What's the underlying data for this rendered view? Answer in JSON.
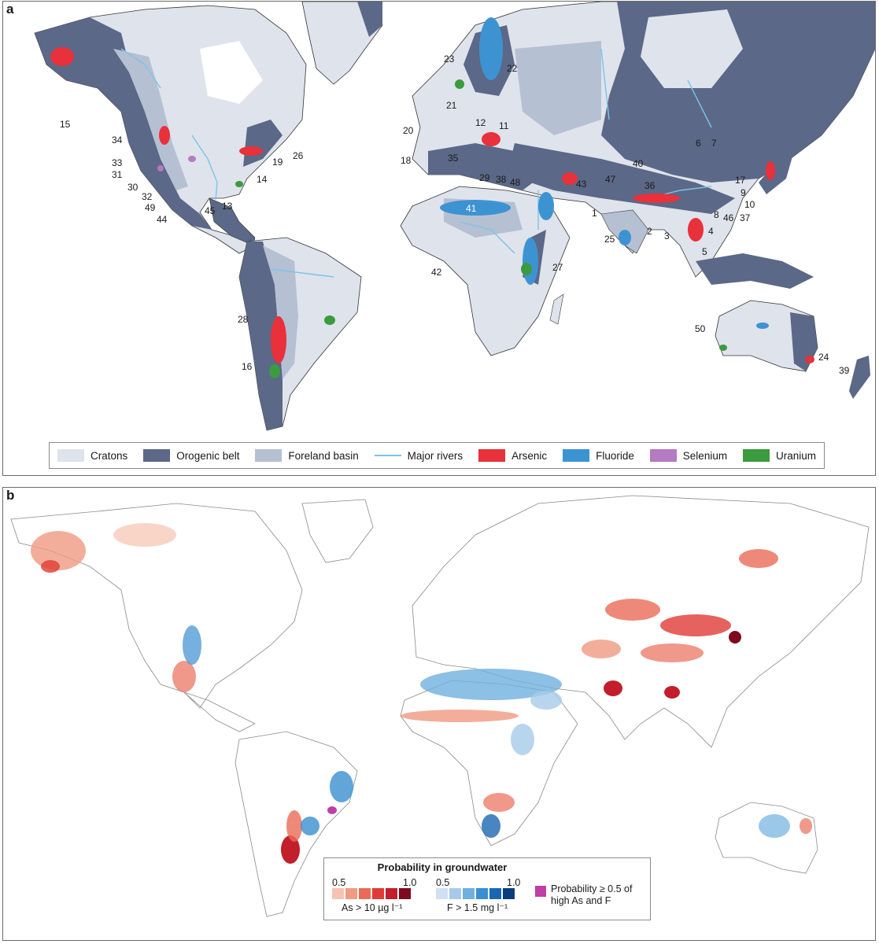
{
  "panel_a": {
    "letter": "a",
    "labels": [
      "15",
      "34",
      "33",
      "31",
      "30",
      "32",
      "49",
      "44",
      "45",
      "13",
      "14",
      "19",
      "26",
      "28",
      "16",
      "23",
      "22",
      "21",
      "20",
      "12",
      "11",
      "18",
      "35",
      "29",
      "38",
      "48",
      "43",
      "47",
      "36",
      "40",
      "6",
      "7",
      "17",
      "9",
      "10",
      "37",
      "46",
      "8",
      "4",
      "5",
      "3",
      "2",
      "1",
      "25",
      "41",
      "42",
      "27",
      "50",
      "24",
      "39"
    ],
    "legend": {
      "cratons": "Cratons",
      "orogenic": "Orogenic belt",
      "foreland": "Foreland basin",
      "rivers": "Major rivers",
      "arsenic": "Arsenic",
      "fluoride": "Fluoride",
      "selenium": "Selenium",
      "uranium": "Uranium"
    },
    "colors": {
      "cratons": "#dfe3ec",
      "orogenic": "#5b6887",
      "foreland": "#b6c0d3",
      "rivers": "#7cc4e8",
      "arsenic": "#e8313a",
      "fluoride": "#3d93d2",
      "selenium": "#b57ac0",
      "uranium": "#3c9a3f"
    }
  },
  "panel_b": {
    "letter": "b",
    "legend": {
      "title": "Probability in groundwater",
      "as_min": "0.5",
      "as_max": "1.0",
      "as_caption": "As > 10 µg l⁻¹",
      "f_min": "0.5",
      "f_max": "1.0",
      "f_caption": "F > 1.5 mg l⁻¹",
      "both_caption": "Probability ≥ 0.5 of high As and F",
      "as_ramp": [
        "#f6c3b0",
        "#f09a82",
        "#ea6c58",
        "#e03b36",
        "#c21e2b",
        "#7d0a1e"
      ],
      "f_ramp": [
        "#cfe0f2",
        "#a6cbea",
        "#6fb0df",
        "#3a8fd0",
        "#1a66b2",
        "#0c3c80"
      ],
      "both_color": "#c03fa2"
    }
  }
}
